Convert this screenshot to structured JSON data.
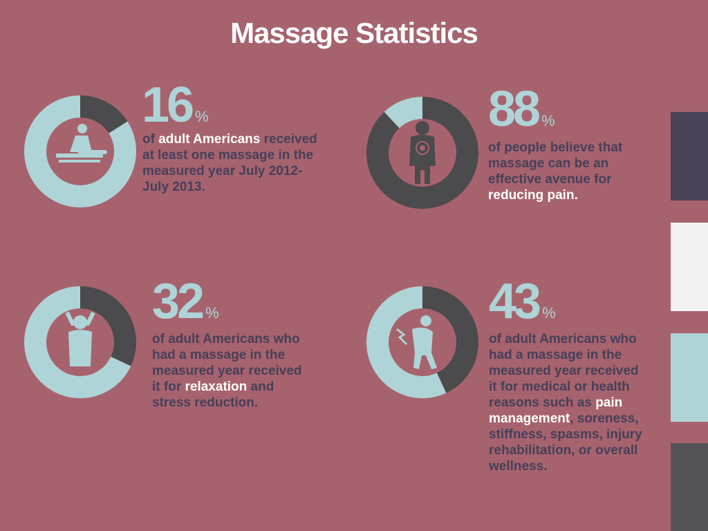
{
  "title": "Massage Statistics",
  "colors": {
    "background": "#a6636e",
    "ring_light": "#aed4d7",
    "ring_dark": "#4b4a4c",
    "text_dark": "#463f5a",
    "highlight": "#ffffff"
  },
  "swatches": [
    "#4a4258",
    "#f2f2f2",
    "#aed4d7",
    "#555557"
  ],
  "stats": [
    {
      "value": 16,
      "unit": "%",
      "icon": "massage-table-icon",
      "text": [
        {
          "t": "of ",
          "hl": false
        },
        {
          "t": "adult Americans",
          "hl": true
        },
        {
          "t": " received at least one massage in the measured year July 2012-July 2013.",
          "hl": false
        }
      ]
    },
    {
      "value": 88,
      "unit": "%",
      "icon": "body-pain-icon",
      "text": [
        {
          "t": "of people believe that massage can be an effective avenue for ",
          "hl": false
        },
        {
          "t": "reducing pain.",
          "hl": true
        }
      ]
    },
    {
      "value": 32,
      "unit": "%",
      "icon": "relaxing-person-icon",
      "text": [
        {
          "t": "of adult Americans who had a massage in the measured year received it for ",
          "hl": false
        },
        {
          "t": "relaxation",
          "hl": true
        },
        {
          "t": " and stress reduction.",
          "hl": false
        }
      ]
    },
    {
      "value": 43,
      "unit": "%",
      "icon": "back-pain-icon",
      "text": [
        {
          "t": "of adult Americans who had a massage in the measured year received it for medical or health reasons such as ",
          "hl": false
        },
        {
          "t": "pain management",
          "hl": true
        },
        {
          "t": ", soreness, stiffness, spasms, injury rehabilitation, or overall wellness.",
          "hl": false
        }
      ]
    }
  ],
  "chart_data": [
    {
      "type": "pie",
      "values": [
        16,
        84
      ],
      "unit": "%"
    },
    {
      "type": "pie",
      "values": [
        88,
        12
      ],
      "unit": "%"
    },
    {
      "type": "pie",
      "values": [
        32,
        68
      ],
      "unit": "%"
    },
    {
      "type": "pie",
      "values": [
        43,
        57
      ],
      "unit": "%"
    }
  ]
}
